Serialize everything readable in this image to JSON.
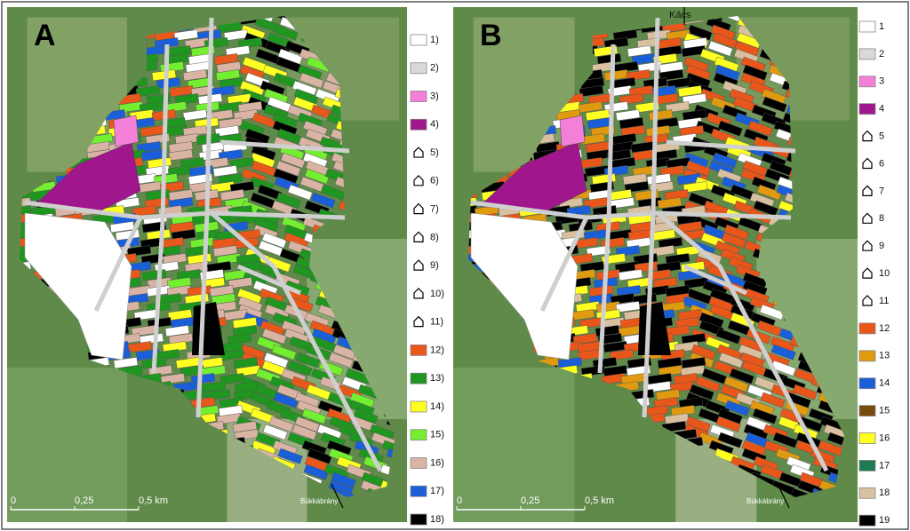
{
  "panels": [
    {
      "label": "A",
      "legend": [
        {
          "label": "1)",
          "color": "#ffffff"
        },
        {
          "label": "2)",
          "color": "#d9d9d9"
        },
        {
          "label": "3)",
          "color": "#f47fd8"
        },
        {
          "label": "4)",
          "color": "#a0168c"
        },
        {
          "label": "5)"
        },
        {
          "label": "6)"
        },
        {
          "label": "7)"
        },
        {
          "label": "8)"
        },
        {
          "label": "9)"
        },
        {
          "label": "10)"
        },
        {
          "label": "11)"
        },
        {
          "label": "12)",
          "color": "#e8581a"
        },
        {
          "label": "13)",
          "color": "#1f961f"
        },
        {
          "label": "14)",
          "color": "#ffff22"
        },
        {
          "label": "15)",
          "color": "#74ee30"
        },
        {
          "label": "16)",
          "color": "#d9b4a4"
        },
        {
          "label": "17)",
          "color": "#1a5ed8"
        },
        {
          "label": "18)",
          "color": "#000000"
        }
      ],
      "scale": [
        "0",
        "0,25",
        "0,5 km"
      ],
      "direction": "Bükkábrány"
    },
    {
      "label": "B",
      "legend": [
        {
          "label": "1",
          "color": "#ffffff"
        },
        {
          "label": "2",
          "color": "#d9d9d9"
        },
        {
          "label": "3",
          "color": "#f47fd8"
        },
        {
          "label": "4",
          "color": "#a0168c"
        },
        {
          "label": "5"
        },
        {
          "label": "6"
        },
        {
          "label": "7"
        },
        {
          "label": "8"
        },
        {
          "label": "9"
        },
        {
          "label": "10"
        },
        {
          "label": "11"
        },
        {
          "label": "12",
          "color": "#e8561a"
        },
        {
          "label": "13",
          "color": "#e09a10"
        },
        {
          "label": "14",
          "color": "#1a5ed8"
        },
        {
          "label": "15",
          "color": "#7a4a10"
        },
        {
          "label": "16",
          "color": "#ffff22"
        },
        {
          "label": "17",
          "color": "#1e7a50"
        },
        {
          "label": "18",
          "color": "#d8c0a0"
        },
        {
          "label": "19",
          "color": "#000000"
        }
      ],
      "scale": [
        "0",
        "0,25",
        "0,5 km"
      ],
      "direction": "Bükkábrány",
      "north": "Kács"
    }
  ]
}
